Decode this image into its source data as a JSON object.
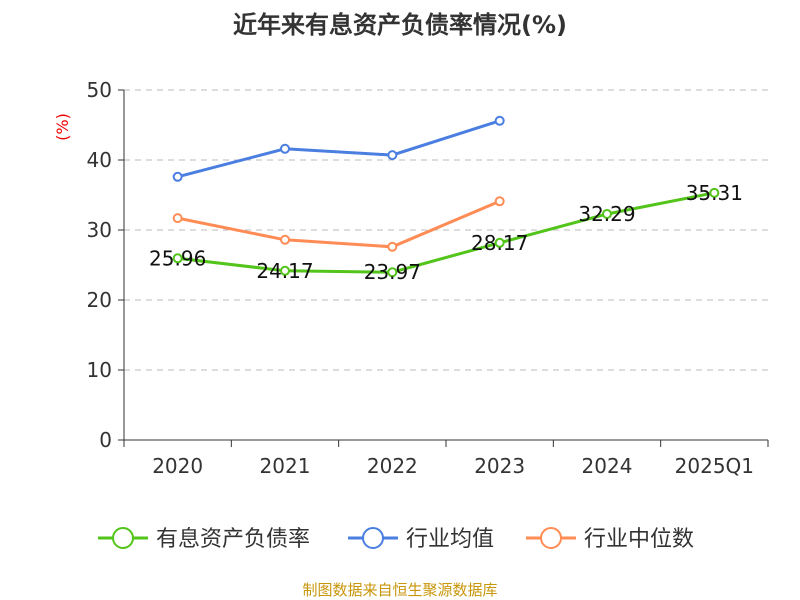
{
  "chart_data": {
    "type": "line",
    "title": "近年来有息资产负债率情况(%)",
    "ylabel": "(%)",
    "categories": [
      "2020",
      "2021",
      "2022",
      "2023",
      "2024",
      "2025Q1"
    ],
    "ylim": [
      0,
      50
    ],
    "yticks": [
      0,
      10,
      20,
      30,
      40,
      50
    ],
    "grid": true,
    "legend_position": "bottom",
    "series": [
      {
        "name": "有息资产负债率",
        "color": "#52c41a",
        "values": [
          25.96,
          24.17,
          23.97,
          28.17,
          32.29,
          35.31
        ],
        "labels": [
          "25.96",
          "24.17",
          "23.97",
          "28.17",
          "32.29",
          "35.31"
        ]
      },
      {
        "name": "行业均值",
        "color": "#4a7ee0",
        "values": [
          37.6,
          41.6,
          40.7,
          45.6,
          null,
          null
        ]
      },
      {
        "name": "行业中位数",
        "color": "#ff8c55",
        "values": [
          31.7,
          28.6,
          27.6,
          34.1,
          null,
          null
        ]
      }
    ]
  },
  "source": "制图数据来自恒生聚源数据库"
}
